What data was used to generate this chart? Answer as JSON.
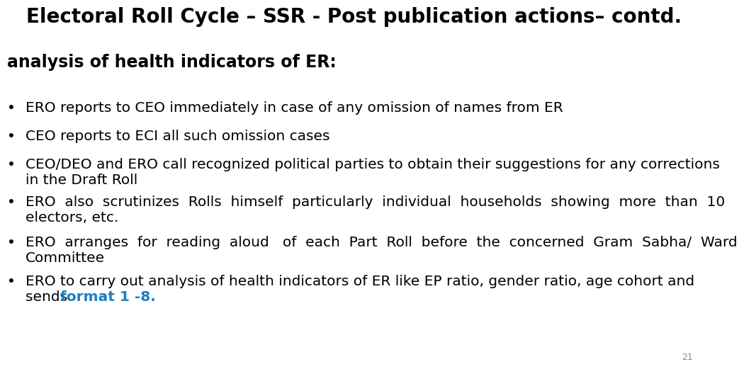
{
  "title": "Electoral Roll Cycle – SSR - Post publication actions– contd.",
  "subtitle": "analysis of health indicators of ER:",
  "bullet1": "ERO reports to CEO immediately in case of any omission of names from ER",
  "bullet2": "CEO reports to ECI all such omission cases",
  "bullet3_line1": "CEO/DEO and ERO call recognized political parties to obtain their suggestions for any corrections",
  "bullet3_line2": "in the Draft Roll",
  "bullet4_line1": "ERO  also  scrutinizes  Rolls  himself  particularly  individual  households  showing  more  than  10",
  "bullet4_line2": "electors, etc.",
  "bullet5_line1": "ERO  arranges  for  reading  aloud   of  each  Part  Roll  before  the  concerned  Gram  Sabha/  Ward",
  "bullet5_line2": "Committee",
  "bullet6_line1": "ERO to carry out analysis of health indicators of ER like EP ratio, gender ratio, age cohort and",
  "bullet6_line2_normal": "sends ",
  "bullet6_line2_blue": "format 1 -8.",
  "page_number": "21",
  "bg": "#ffffff",
  "black": "#000000",
  "blue": "#1E7FC2",
  "gray": "#888888",
  "title_fs": 20,
  "subtitle_fs": 17,
  "bullet_fs": 14.5,
  "page_fs": 9
}
